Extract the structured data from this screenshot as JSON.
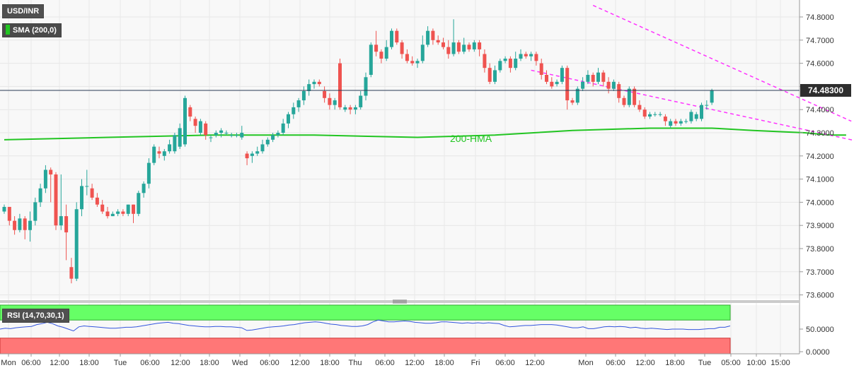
{
  "header": {
    "pair_label": "USD/INR",
    "sma_label": "SMA (200,0)",
    "rsi_label": "RSI (14,70,30,1)",
    "last_price_label": "74.48300"
  },
  "colors": {
    "bullish": "#26a69a",
    "bearish": "#ef5350",
    "sma": "#22c522",
    "trendline": "#ff33ff",
    "rsi_line": "#3355dd",
    "rsi_overbought": "#66ff66",
    "rsi_oversold": "#ff7777"
  },
  "chart_data": [
    {
      "type": "candlestick",
      "title": "USD/INR",
      "ylim": [
        73.56,
        74.86
      ],
      "y_ticks": [
        "74.8000",
        "74.7000",
        "74.6000",
        "74.5000",
        "74.4000",
        "74.3000",
        "74.2000",
        "74.1000",
        "74.0000",
        "73.9000",
        "73.8000",
        "73.7000",
        "73.6000"
      ],
      "x_ticks": [
        "Mon",
        "06:00",
        "12:00",
        "18:00",
        "Tue",
        "06:00",
        "12:00",
        "18:00",
        "Wed",
        "06:00",
        "12:00",
        "18:00",
        "Thu",
        "06:00",
        "12:00",
        "18:00",
        "Fri",
        "06:00",
        "12:00",
        "Mon",
        "06:00",
        "12:00",
        "18:00",
        "Tue",
        "05:00",
        "10:00",
        "15:00"
      ],
      "grid": true,
      "last_price": 74.483,
      "candles": [
        {
          "o": 73.96,
          "c": 73.98,
          "h": 73.99,
          "l": 73.95
        },
        {
          "o": 73.98,
          "c": 73.92,
          "h": 73.98,
          "l": 73.9
        },
        {
          "o": 73.92,
          "c": 73.88,
          "h": 73.94,
          "l": 73.86
        },
        {
          "o": 73.88,
          "c": 73.93,
          "h": 73.95,
          "l": 73.87
        },
        {
          "o": 73.93,
          "c": 73.88,
          "h": 73.94,
          "l": 73.84
        },
        {
          "o": 73.88,
          "c": 73.92,
          "h": 73.96,
          "l": 73.83
        },
        {
          "o": 73.92,
          "c": 74.0,
          "h": 74.02,
          "l": 73.9
        },
        {
          "o": 74.0,
          "c": 74.06,
          "h": 74.08,
          "l": 73.98
        },
        {
          "o": 74.06,
          "c": 74.14,
          "h": 74.16,
          "l": 74.04
        },
        {
          "o": 74.14,
          "c": 74.12,
          "h": 74.15,
          "l": 74.0
        },
        {
          "o": 74.12,
          "c": 73.9,
          "h": 74.13,
          "l": 73.88
        },
        {
          "o": 73.9,
          "c": 73.94,
          "h": 74.12,
          "l": 73.88
        },
        {
          "o": 73.94,
          "c": 73.87,
          "h": 73.99,
          "l": 73.75
        },
        {
          "o": 73.72,
          "c": 73.67,
          "h": 73.76,
          "l": 73.65
        },
        {
          "o": 73.67,
          "c": 73.97,
          "h": 74.0,
          "l": 73.66
        },
        {
          "o": 73.97,
          "c": 74.07,
          "h": 74.1,
          "l": 73.94
        },
        {
          "o": 74.07,
          "c": 74.07,
          "h": 74.14,
          "l": 74.03
        },
        {
          "o": 74.06,
          "c": 74.02,
          "h": 74.08,
          "l": 74.01
        },
        {
          "o": 74.02,
          "c": 73.99,
          "h": 74.04,
          "l": 73.98
        },
        {
          "o": 73.99,
          "c": 73.96,
          "h": 74.01,
          "l": 73.95
        },
        {
          "o": 73.96,
          "c": 73.94,
          "h": 73.98,
          "l": 73.93
        },
        {
          "o": 73.94,
          "c": 73.95,
          "h": 73.96,
          "l": 73.94
        },
        {
          "o": 73.95,
          "c": 73.96,
          "h": 73.97,
          "l": 73.94
        },
        {
          "o": 73.96,
          "c": 73.95,
          "h": 73.97,
          "l": 73.94
        },
        {
          "o": 73.95,
          "c": 73.99,
          "h": 73.99,
          "l": 73.94
        },
        {
          "o": 73.99,
          "c": 73.95,
          "h": 73.99,
          "l": 73.91
        },
        {
          "o": 73.95,
          "c": 74.04,
          "h": 74.05,
          "l": 73.94
        },
        {
          "o": 74.04,
          "c": 74.08,
          "h": 74.09,
          "l": 74.02
        },
        {
          "o": 74.08,
          "c": 74.17,
          "h": 74.19,
          "l": 74.06
        },
        {
          "o": 74.17,
          "c": 74.24,
          "h": 74.25,
          "l": 74.16
        },
        {
          "o": 74.22,
          "c": 74.21,
          "h": 74.24,
          "l": 74.19
        },
        {
          "o": 74.2,
          "c": 74.22,
          "h": 74.23,
          "l": 74.18
        },
        {
          "o": 74.22,
          "c": 74.25,
          "h": 74.27,
          "l": 74.21
        },
        {
          "o": 74.22,
          "c": 74.29,
          "h": 74.3,
          "l": 74.21
        },
        {
          "o": 74.24,
          "c": 74.32,
          "h": 74.34,
          "l": 74.23
        },
        {
          "o": 74.25,
          "c": 74.45,
          "h": 74.46,
          "l": 74.24
        },
        {
          "o": 74.41,
          "c": 74.37,
          "h": 74.42,
          "l": 74.35
        },
        {
          "o": 74.36,
          "c": 74.33,
          "h": 74.37,
          "l": 74.3
        },
        {
          "o": 74.3,
          "c": 74.35,
          "h": 74.36,
          "l": 74.29
        },
        {
          "o": 74.34,
          "c": 74.29,
          "h": 74.35,
          "l": 74.27
        },
        {
          "o": 74.28,
          "c": 74.28,
          "h": 74.29,
          "l": 74.26
        },
        {
          "o": 74.29,
          "c": 74.3,
          "h": 74.31,
          "l": 74.28
        },
        {
          "o": 74.3,
          "c": 74.31,
          "h": 74.32,
          "l": 74.28
        },
        {
          "o": 74.3,
          "c": 74.3,
          "h": 74.31,
          "l": 74.29
        },
        {
          "o": 74.29,
          "c": 74.29,
          "h": 74.3,
          "l": 74.28
        },
        {
          "o": 74.29,
          "c": 74.29,
          "h": 74.3,
          "l": 74.28
        },
        {
          "o": 74.28,
          "c": 74.3,
          "h": 74.33,
          "l": 74.27
        },
        {
          "o": 74.21,
          "c": 74.19,
          "h": 74.22,
          "l": 74.16
        },
        {
          "o": 74.2,
          "c": 74.21,
          "h": 74.22,
          "l": 74.17
        },
        {
          "o": 74.21,
          "c": 74.22,
          "h": 74.24,
          "l": 74.2
        },
        {
          "o": 74.22,
          "c": 74.25,
          "h": 74.27,
          "l": 74.21
        },
        {
          "o": 74.25,
          "c": 74.27,
          "h": 74.28,
          "l": 74.24
        },
        {
          "o": 74.27,
          "c": 74.29,
          "h": 74.3,
          "l": 74.26
        },
        {
          "o": 74.29,
          "c": 74.3,
          "h": 74.31,
          "l": 74.28
        },
        {
          "o": 74.3,
          "c": 74.34,
          "h": 74.36,
          "l": 74.29
        },
        {
          "o": 74.34,
          "c": 74.38,
          "h": 74.39,
          "l": 74.32
        },
        {
          "o": 74.38,
          "c": 74.41,
          "h": 74.43,
          "l": 74.36
        },
        {
          "o": 74.41,
          "c": 74.44,
          "h": 74.45,
          "l": 74.39
        },
        {
          "o": 74.44,
          "c": 74.48,
          "h": 74.5,
          "l": 74.42
        },
        {
          "o": 74.48,
          "c": 74.51,
          "h": 74.53,
          "l": 74.46
        },
        {
          "o": 74.51,
          "c": 74.52,
          "h": 74.53,
          "l": 74.49
        },
        {
          "o": 74.52,
          "c": 74.51,
          "h": 74.53,
          "l": 74.5
        },
        {
          "o": 74.48,
          "c": 74.45,
          "h": 74.5,
          "l": 74.43
        },
        {
          "o": 74.45,
          "c": 74.42,
          "h": 74.47,
          "l": 74.4
        },
        {
          "o": 74.42,
          "c": 74.44,
          "h": 74.45,
          "l": 74.4
        },
        {
          "o": 74.6,
          "c": 74.41,
          "h": 74.62,
          "l": 74.4
        },
        {
          "o": 74.4,
          "c": 74.41,
          "h": 74.42,
          "l": 74.39
        },
        {
          "o": 74.41,
          "c": 74.4,
          "h": 74.42,
          "l": 74.38
        },
        {
          "o": 74.4,
          "c": 74.41,
          "h": 74.42,
          "l": 74.38
        },
        {
          "o": 74.41,
          "c": 74.46,
          "h": 74.48,
          "l": 74.4
        },
        {
          "o": 74.46,
          "c": 74.54,
          "h": 74.56,
          "l": 74.44
        },
        {
          "o": 74.55,
          "c": 74.68,
          "h": 74.69,
          "l": 74.54
        },
        {
          "o": 74.68,
          "c": 74.65,
          "h": 74.74,
          "l": 74.63
        },
        {
          "o": 74.65,
          "c": 74.62,
          "h": 74.66,
          "l": 74.6
        },
        {
          "o": 74.62,
          "c": 74.67,
          "h": 74.7,
          "l": 74.61
        },
        {
          "o": 74.67,
          "c": 74.74,
          "h": 74.75,
          "l": 74.66
        },
        {
          "o": 74.74,
          "c": 74.69,
          "h": 74.75,
          "l": 74.68
        },
        {
          "o": 74.69,
          "c": 74.64,
          "h": 74.7,
          "l": 74.62
        },
        {
          "o": 74.64,
          "c": 74.61,
          "h": 74.66,
          "l": 74.6
        },
        {
          "o": 74.61,
          "c": 74.6,
          "h": 74.63,
          "l": 74.59
        },
        {
          "o": 74.6,
          "c": 74.61,
          "h": 74.62,
          "l": 74.58
        },
        {
          "o": 74.61,
          "c": 74.68,
          "h": 74.72,
          "l": 74.6
        },
        {
          "o": 74.68,
          "c": 74.74,
          "h": 74.76,
          "l": 74.67
        },
        {
          "o": 74.74,
          "c": 74.7,
          "h": 74.75,
          "l": 74.68
        },
        {
          "o": 74.7,
          "c": 74.69,
          "h": 74.72,
          "l": 74.68
        },
        {
          "o": 74.69,
          "c": 74.67,
          "h": 74.71,
          "l": 74.66
        },
        {
          "o": 74.67,
          "c": 74.64,
          "h": 74.7,
          "l": 74.62
        },
        {
          "o": 74.64,
          "c": 74.69,
          "h": 74.79,
          "l": 74.63
        },
        {
          "o": 74.69,
          "c": 74.65,
          "h": 74.7,
          "l": 74.64
        },
        {
          "o": 74.65,
          "c": 74.68,
          "h": 74.71,
          "l": 74.64
        },
        {
          "o": 74.68,
          "c": 74.66,
          "h": 74.69,
          "l": 74.65
        },
        {
          "o": 74.66,
          "c": 74.69,
          "h": 74.7,
          "l": 74.65
        },
        {
          "o": 74.69,
          "c": 74.66,
          "h": 74.7,
          "l": 74.63
        },
        {
          "o": 74.64,
          "c": 74.58,
          "h": 74.66,
          "l": 74.56
        },
        {
          "o": 74.58,
          "c": 74.52,
          "h": 74.6,
          "l": 74.51
        },
        {
          "o": 74.52,
          "c": 74.57,
          "h": 74.59,
          "l": 74.51
        },
        {
          "o": 74.57,
          "c": 74.61,
          "h": 74.62,
          "l": 74.56
        },
        {
          "o": 74.61,
          "c": 74.62,
          "h": 74.63,
          "l": 74.6
        },
        {
          "o": 74.62,
          "c": 74.58,
          "h": 74.63,
          "l": 74.56
        },
        {
          "o": 74.58,
          "c": 74.62,
          "h": 74.65,
          "l": 74.57
        },
        {
          "o": 74.62,
          "c": 74.64,
          "h": 74.66,
          "l": 74.61
        },
        {
          "o": 74.64,
          "c": 74.63,
          "h": 74.65,
          "l": 74.62
        },
        {
          "o": 74.63,
          "c": 74.64,
          "h": 74.65,
          "l": 74.61
        },
        {
          "o": 74.64,
          "c": 74.61,
          "h": 74.65,
          "l": 74.59
        },
        {
          "o": 74.6,
          "c": 74.55,
          "h": 74.62,
          "l": 74.53
        },
        {
          "o": 74.55,
          "c": 74.52,
          "h": 74.57,
          "l": 74.51
        },
        {
          "o": 74.52,
          "c": 74.5,
          "h": 74.54,
          "l": 74.49
        },
        {
          "o": 74.51,
          "c": 74.52,
          "h": 74.53,
          "l": 74.5
        },
        {
          "o": 74.52,
          "c": 74.58,
          "h": 74.59,
          "l": 74.51
        },
        {
          "o": 74.58,
          "c": 74.44,
          "h": 74.59,
          "l": 74.4
        },
        {
          "o": 74.44,
          "c": 74.43,
          "h": 74.45,
          "l": 74.42
        },
        {
          "o": 74.43,
          "c": 74.49,
          "h": 74.5,
          "l": 74.42
        },
        {
          "o": 74.49,
          "c": 74.52,
          "h": 74.54,
          "l": 74.48
        },
        {
          "o": 74.52,
          "c": 74.55,
          "h": 74.57,
          "l": 74.51
        },
        {
          "o": 74.55,
          "c": 74.52,
          "h": 74.56,
          "l": 74.5
        },
        {
          "o": 74.52,
          "c": 74.56,
          "h": 74.58,
          "l": 74.51
        },
        {
          "o": 74.56,
          "c": 74.52,
          "h": 74.57,
          "l": 74.5
        },
        {
          "o": 74.52,
          "c": 74.49,
          "h": 74.54,
          "l": 74.47
        },
        {
          "o": 74.49,
          "c": 74.52,
          "h": 74.53,
          "l": 74.48
        },
        {
          "o": 74.51,
          "c": 74.45,
          "h": 74.52,
          "l": 74.43
        },
        {
          "o": 74.45,
          "c": 74.42,
          "h": 74.46,
          "l": 74.41
        },
        {
          "o": 74.42,
          "c": 74.49,
          "h": 74.5,
          "l": 74.41
        },
        {
          "o": 74.49,
          "c": 74.42,
          "h": 74.5,
          "l": 74.41
        },
        {
          "o": 74.42,
          "c": 74.4,
          "h": 74.44,
          "l": 74.39
        },
        {
          "o": 74.4,
          "c": 74.37,
          "h": 74.41,
          "l": 74.36
        },
        {
          "o": 74.37,
          "c": 74.38,
          "h": 74.39,
          "l": 74.36
        },
        {
          "o": 74.38,
          "c": 74.38,
          "h": 74.39,
          "l": 74.37
        },
        {
          "o": 74.38,
          "c": 74.38,
          "h": 74.39,
          "l": 74.37
        },
        {
          "o": 74.37,
          "c": 74.35,
          "h": 74.38,
          "l": 74.33
        },
        {
          "o": 74.33,
          "c": 74.35,
          "h": 74.36,
          "l": 74.32
        },
        {
          "o": 74.35,
          "c": 74.34,
          "h": 74.36,
          "l": 74.33
        },
        {
          "o": 74.34,
          "c": 74.35,
          "h": 74.36,
          "l": 74.33
        },
        {
          "o": 74.35,
          "c": 74.35,
          "h": 74.36,
          "l": 74.34
        },
        {
          "o": 74.35,
          "c": 74.39,
          "h": 74.4,
          "l": 74.34
        },
        {
          "o": 74.36,
          "c": 74.38,
          "h": 74.39,
          "l": 74.35
        },
        {
          "o": 74.36,
          "c": 74.42,
          "h": 74.43,
          "l": 74.35
        },
        {
          "o": 74.42,
          "c": 74.42,
          "h": 74.44,
          "l": 74.4
        },
        {
          "o": 74.43,
          "c": 74.483,
          "h": 74.49,
          "l": 74.42
        }
      ],
      "sma": {
        "label": "200-HMA",
        "points": [
          [
            0,
            74.27
          ],
          [
            20,
            74.28
          ],
          [
            40,
            74.29
          ],
          [
            60,
            74.29
          ],
          [
            80,
            74.28
          ],
          [
            95,
            74.29
          ],
          [
            110,
            74.31
          ],
          [
            125,
            74.32
          ],
          [
            137,
            74.32
          ],
          [
            145,
            74.31
          ],
          [
            155,
            74.3
          ],
          [
            160,
            74.29
          ],
          [
            163,
            74.29
          ]
        ]
      },
      "trendlines": [
        {
          "name": "upper",
          "from": [
            114,
            74.85
          ],
          "to": [
            164,
            74.35
          ]
        },
        {
          "name": "lower",
          "from": [
            102,
            74.57
          ],
          "to": [
            166,
            74.26
          ]
        }
      ]
    },
    {
      "type": "line",
      "title": "RSI (14,70,30,1)",
      "ylim": [
        0,
        100
      ],
      "y_ticks": [
        "50.0000",
        "0.0000"
      ],
      "overbought": 70,
      "oversold": 30,
      "values": [
        50,
        52,
        51,
        53,
        54,
        55,
        56,
        60,
        62,
        65,
        62,
        57,
        54,
        50,
        46,
        55,
        57,
        56,
        55,
        54,
        53,
        52,
        52,
        53,
        54,
        54,
        55,
        57,
        59,
        61,
        63,
        64,
        65,
        63,
        62,
        60,
        58,
        57,
        56,
        55,
        55,
        56,
        56,
        55,
        55,
        54,
        53,
        47,
        48,
        50,
        52,
        54,
        55,
        56,
        57,
        59,
        60,
        62,
        64,
        65,
        66,
        65,
        63,
        61,
        60,
        58,
        57,
        56,
        56,
        57,
        60,
        66,
        70,
        68,
        66,
        66,
        67,
        68,
        67,
        65,
        64,
        63,
        63,
        64,
        66,
        66,
        65,
        64,
        63,
        64,
        63,
        64,
        63,
        64,
        63,
        62,
        58,
        55,
        56,
        57,
        58,
        58,
        59,
        60,
        60,
        60,
        59,
        57,
        55,
        53,
        53,
        55,
        51,
        51,
        53,
        55,
        56,
        55,
        56,
        55,
        53,
        54,
        52,
        51,
        52,
        51,
        50,
        49,
        50,
        50,
        50,
        49,
        49,
        49,
        50,
        51,
        51,
        54,
        54,
        57
      ]
    }
  ]
}
